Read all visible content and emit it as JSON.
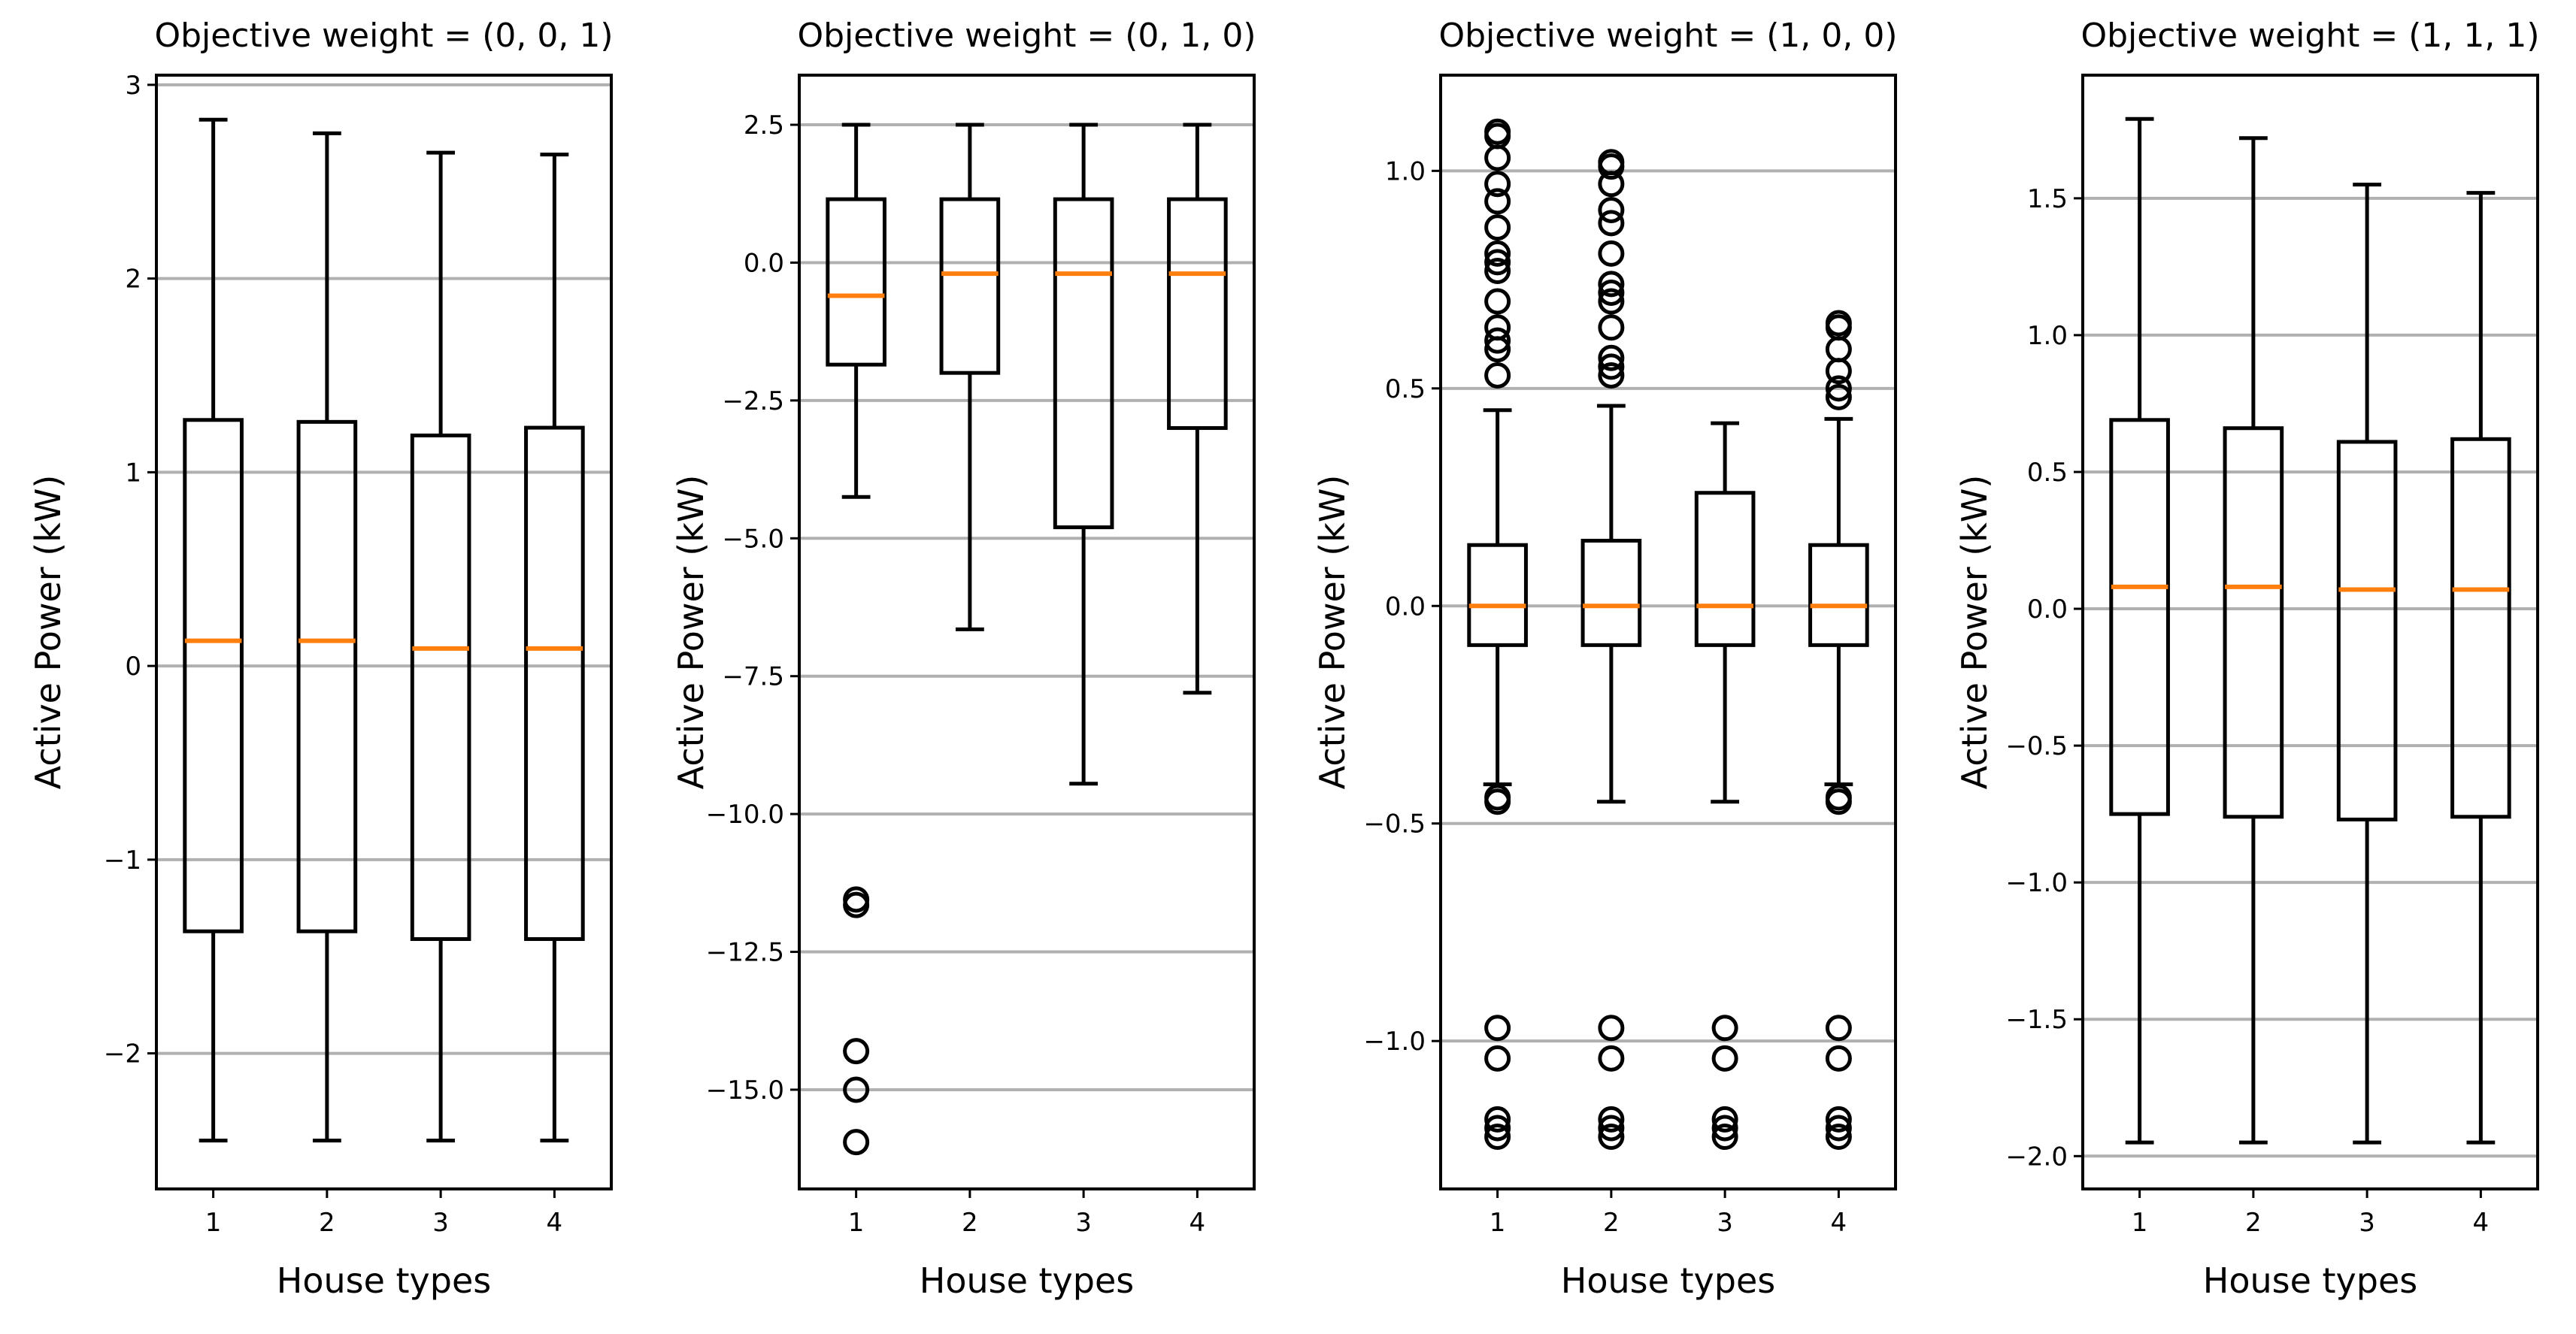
{
  "chart_data": [
    {
      "type": "box",
      "title": "Objective weight = (0, 0, 1)",
      "xlabel": "House types",
      "ylabel": "Active Power (kW)",
      "categories": [
        "1",
        "2",
        "3",
        "4"
      ],
      "ylim": [
        -2.7,
        3.05
      ],
      "yticks": [
        -2,
        -1,
        0,
        1,
        2,
        3
      ],
      "ytick_labels": [
        "−2",
        "−1",
        "0",
        "1",
        "2",
        "3"
      ],
      "grid": "y",
      "boxes": [
        {
          "whislo": -2.45,
          "q1": -1.37,
          "med": 0.13,
          "q3": 1.27,
          "whishi": 2.82,
          "fliers": []
        },
        {
          "whislo": -2.45,
          "q1": -1.37,
          "med": 0.13,
          "q3": 1.26,
          "whishi": 2.75,
          "fliers": []
        },
        {
          "whislo": -2.45,
          "q1": -1.41,
          "med": 0.09,
          "q3": 1.19,
          "whishi": 2.65,
          "fliers": []
        },
        {
          "whislo": -2.45,
          "q1": -1.41,
          "med": 0.09,
          "q3": 1.23,
          "whishi": 2.64,
          "fliers": []
        }
      ]
    },
    {
      "type": "box",
      "title": "Objective weight = (0, 1, 0)",
      "xlabel": "House types",
      "ylabel": "Active Power (kW)",
      "categories": [
        "1",
        "2",
        "3",
        "4"
      ],
      "ylim": [
        -16.8,
        3.4
      ],
      "yticks": [
        -15,
        -12.5,
        -10,
        -7.5,
        -5,
        -2.5,
        0,
        2.5
      ],
      "ytick_labels": [
        "−15.0",
        "−12.5",
        "−10.0",
        "−7.5",
        "−5.0",
        "−2.5",
        "0.0",
        "2.5"
      ],
      "grid": "y",
      "boxes": [
        {
          "whislo": -4.25,
          "q1": -1.85,
          "med": -0.6,
          "q3": 1.15,
          "whishi": 2.5,
          "fliers": [
            -11.55,
            -11.65,
            -14.3,
            -15.0,
            -15.95
          ]
        },
        {
          "whislo": -6.65,
          "q1": -2.0,
          "med": -0.2,
          "q3": 1.15,
          "whishi": 2.5,
          "fliers": []
        },
        {
          "whislo": -9.45,
          "q1": -4.8,
          "med": -0.2,
          "q3": 1.15,
          "whishi": 2.5,
          "fliers": []
        },
        {
          "whislo": -7.8,
          "q1": -3.0,
          "med": -0.2,
          "q3": 1.15,
          "whishi": 2.5,
          "fliers": []
        }
      ]
    },
    {
      "type": "box",
      "title": "Objective weight = (1, 0, 0)",
      "xlabel": "House types",
      "ylabel": "Active Power (kW)",
      "categories": [
        "1",
        "2",
        "3",
        "4"
      ],
      "ylim": [
        -1.34,
        1.22
      ],
      "yticks": [
        -1.0,
        -0.5,
        0.0,
        0.5,
        1.0
      ],
      "ytick_labels": [
        "−1.0",
        "−0.5",
        "0.0",
        "0.5",
        "1.0"
      ],
      "grid": "y",
      "boxes": [
        {
          "whislo": -0.41,
          "q1": -0.09,
          "med": 0.0,
          "q3": 0.14,
          "whishi": 0.45,
          "fliers": [
            1.09,
            1.08,
            1.03,
            0.97,
            0.93,
            0.87,
            0.81,
            0.79,
            0.77,
            0.7,
            0.64,
            0.61,
            0.59,
            0.53,
            -0.44,
            -0.45,
            -0.97,
            -1.04,
            -1.18,
            -1.2,
            -1.22
          ]
        },
        {
          "whislo": -0.45,
          "q1": -0.09,
          "med": 0.0,
          "q3": 0.15,
          "whishi": 0.46,
          "fliers": [
            1.02,
            1.01,
            0.97,
            0.91,
            0.88,
            0.81,
            0.74,
            0.72,
            0.7,
            0.64,
            0.57,
            0.55,
            0.53,
            -0.97,
            -1.04,
            -1.18,
            -1.2,
            -1.22
          ]
        },
        {
          "whislo": -0.45,
          "q1": -0.09,
          "med": 0.0,
          "q3": 0.26,
          "whishi": 0.42,
          "fliers": [
            -0.97,
            -1.04,
            -1.18,
            -1.2,
            -1.22
          ]
        },
        {
          "whislo": -0.41,
          "q1": -0.09,
          "med": 0.0,
          "q3": 0.14,
          "whishi": 0.43,
          "fliers": [
            0.65,
            0.64,
            0.59,
            0.54,
            0.5,
            0.48,
            -0.44,
            -0.45,
            -0.97,
            -1.04,
            -1.18,
            -1.2,
            -1.22
          ]
        }
      ]
    },
    {
      "type": "box",
      "title": "Objective weight = (1, 1, 1)",
      "xlabel": "House types",
      "ylabel": "Active Power (kW)",
      "categories": [
        "1",
        "2",
        "3",
        "4"
      ],
      "ylim": [
        -2.12,
        1.95
      ],
      "yticks": [
        -2.0,
        -1.5,
        -1.0,
        -0.5,
        0.0,
        0.5,
        1.0,
        1.5
      ],
      "ytick_labels": [
        "−2.0",
        "−1.5",
        "−1.0",
        "−0.5",
        "0.0",
        "0.5",
        "1.0",
        "1.5"
      ],
      "grid": "y",
      "boxes": [
        {
          "whislo": -1.95,
          "q1": -0.75,
          "med": 0.08,
          "q3": 0.69,
          "whishi": 1.79,
          "fliers": []
        },
        {
          "whislo": -1.95,
          "q1": -0.76,
          "med": 0.08,
          "q3": 0.66,
          "whishi": 1.72,
          "fliers": []
        },
        {
          "whislo": -1.95,
          "q1": -0.77,
          "med": 0.07,
          "q3": 0.61,
          "whishi": 1.55,
          "fliers": []
        },
        {
          "whislo": -1.95,
          "q1": -0.76,
          "med": 0.07,
          "q3": 0.62,
          "whishi": 1.52,
          "fliers": []
        }
      ]
    }
  ],
  "colors": {
    "box": "#000000",
    "median": "#ff7f0e",
    "grid": "#b0b0b0",
    "background": "#ffffff"
  }
}
